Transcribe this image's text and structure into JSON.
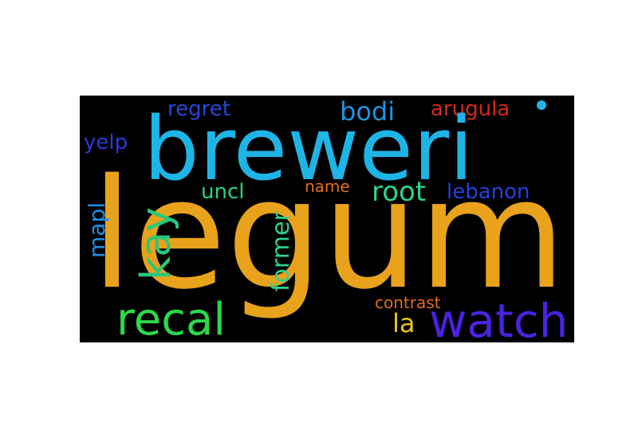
{
  "cloud": {
    "background": "#000000",
    "words": [
      {
        "text": "legum",
        "color": "#e8a21c"
      },
      {
        "text": "breweri",
        "color": "#1fb4e6"
      },
      {
        "text": "watch",
        "color": "#4a22e0"
      },
      {
        "text": "recal",
        "color": "#2bd94a"
      },
      {
        "text": "kay",
        "color": "#29c77a"
      },
      {
        "text": "root",
        "color": "#2ed48a"
      },
      {
        "text": "former",
        "color": "#2fd28e"
      },
      {
        "text": "bodi",
        "color": "#1f94e0"
      },
      {
        "text": "arugula",
        "color": "#d8261c"
      },
      {
        "text": "regret",
        "color": "#2746d8"
      },
      {
        "text": "lebanon",
        "color": "#2640dc"
      },
      {
        "text": "uncl",
        "color": "#27d37e"
      },
      {
        "text": "yelp",
        "color": "#2a3ad8"
      },
      {
        "text": "mapl",
        "color": "#1d8fe6"
      },
      {
        "text": "name",
        "color": "#e0701a"
      },
      {
        "text": "contrast",
        "color": "#e06e1c"
      },
      {
        "text": "la",
        "color": "#e6c81c"
      },
      {
        "text": "dot",
        "color": "#1fb4e6"
      }
    ]
  }
}
